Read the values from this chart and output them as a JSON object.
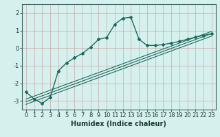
{
  "title": "",
  "xlabel": "Humidex (Indice chaleur)",
  "bg_color": "#d6f0ee",
  "line_color": "#1a6b5e",
  "grid_color_v": "#c8a8a8",
  "grid_color_h": "#c8a8a8",
  "xlim": [
    -0.5,
    23.5
  ],
  "ylim": [
    -3.5,
    2.5
  ],
  "x_data": [
    0,
    1,
    2,
    3,
    4,
    5,
    6,
    7,
    8,
    9,
    10,
    11,
    12,
    13,
    14,
    15,
    16,
    17,
    18,
    19,
    20,
    21,
    22,
    23
  ],
  "y_main": [
    -2.5,
    -2.9,
    -3.15,
    -2.8,
    -1.3,
    -0.85,
    -0.55,
    -0.3,
    0.05,
    0.5,
    0.6,
    1.35,
    1.7,
    1.75,
    0.5,
    0.15,
    0.15,
    0.2,
    0.28,
    0.38,
    0.5,
    0.62,
    0.72,
    0.82
  ],
  "reg_line1_x": [
    0,
    23
  ],
  "reg_line1_y": [
    -3.05,
    0.82
  ],
  "reg_line2_x": [
    0,
    23
  ],
  "reg_line2_y": [
    -3.2,
    0.68
  ],
  "reg_line3_x": [
    0,
    23
  ],
  "reg_line3_y": [
    -2.9,
    0.95
  ],
  "x_ticks": [
    0,
    1,
    2,
    3,
    4,
    5,
    6,
    7,
    8,
    9,
    10,
    11,
    12,
    13,
    14,
    15,
    16,
    17,
    18,
    19,
    20,
    21,
    22,
    23
  ],
  "y_ticks": [
    -3,
    -2,
    -1,
    0,
    1,
    2
  ],
  "xlabel_fontsize": 7,
  "tick_fontsize": 6
}
